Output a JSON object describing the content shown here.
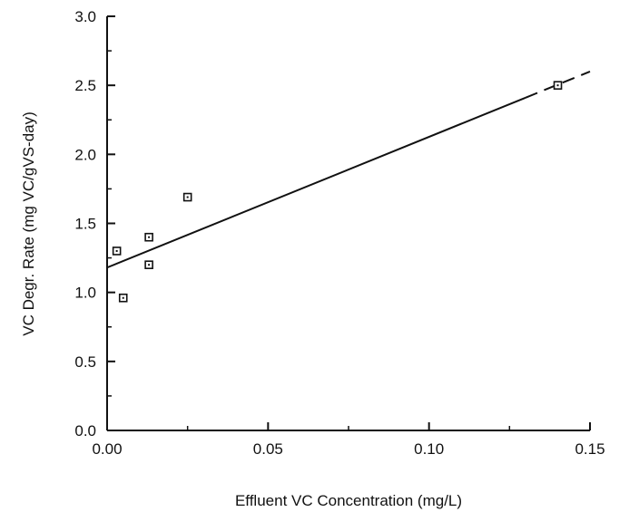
{
  "chart_data": {
    "type": "scatter",
    "xlabel": "Effluent VC Concentration (mg/L)",
    "ylabel": "VC Degr. Rate (mg VC/gVS-day)",
    "xlim": [
      0.0,
      0.15
    ],
    "ylim": [
      0.0,
      3.0
    ],
    "x_ticks": [
      "0.00",
      "0.05",
      "0.10",
      "0.15"
    ],
    "y_ticks": [
      "0.0",
      "0.5",
      "1.0",
      "1.5",
      "2.0",
      "2.5",
      "3.0"
    ],
    "grid": false,
    "series": [
      {
        "marker": "open-square",
        "points": [
          {
            "x": 0.003,
            "y": 1.3
          },
          {
            "x": 0.005,
            "y": 0.96
          },
          {
            "x": 0.013,
            "y": 1.4
          },
          {
            "x": 0.013,
            "y": 1.2
          },
          {
            "x": 0.025,
            "y": 1.69
          },
          {
            "x": 0.14,
            "y": 2.5
          }
        ]
      }
    ],
    "fit_line": {
      "style": "solid-then-dashed",
      "start": {
        "x": 0.0,
        "y": 1.18
      },
      "end": {
        "x": 0.15,
        "y": 2.6
      },
      "dash_from_x": 0.13
    },
    "colors": {
      "ink": "#111111",
      "background": "#ffffff"
    }
  }
}
